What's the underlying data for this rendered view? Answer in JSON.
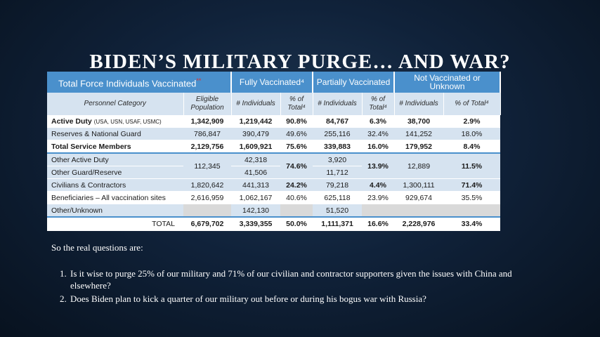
{
  "slide": {
    "title": "BIDEN’S MILITARY PURGE… AND WAR?"
  },
  "table": {
    "header": {
      "total_label": "Total Force Individuals Vaccinated",
      "total_marker": "**",
      "fully": "Fully Vaccinated⁴",
      "partially": "Partially Vaccinated",
      "not": "Not Vaccinated or Unknown"
    },
    "subheader": {
      "category": "Personnel Category",
      "eligible": "Eligible Population",
      "fully_num": "# Individuals",
      "fully_pct": "% of Total⁴",
      "partial_num": "# Individuals",
      "partial_pct": "% of Total⁴",
      "not_num": "# Individuals",
      "not_pct": "% of Total⁴"
    },
    "rows": [
      {
        "label": "Active Duty",
        "label_small": "(USA, USN, USAF, USMC)",
        "eligible": "1,342,909",
        "f_num": "1,219,442",
        "f_pct": "90.8%",
        "p_num": "84,767",
        "p_pct": "6.3%",
        "n_num": "38,700",
        "n_pct": "2.9%"
      },
      {
        "label": "Reserves & National Guard",
        "eligible": "786,847",
        "f_num": "390,479",
        "f_pct": "49.6%",
        "p_num": "255,116",
        "p_pct": "32.4%",
        "n_num": "141,252",
        "n_pct": "18.0%"
      },
      {
        "label": "Total Service Members",
        "eligible": "2,129,756",
        "f_num": "1,609,921",
        "f_pct": "75.6%",
        "p_num": "339,883",
        "p_pct": "16.0%",
        "n_num": "179,952",
        "n_pct": "8.4%"
      }
    ],
    "other_group": {
      "label_a": "Other Active Duty",
      "label_b": "Other Guard/Reserve",
      "eligible": "112,345",
      "f_num_a": "42,318",
      "f_num_b": "41,506",
      "f_pct": "74.6%",
      "p_num_a": "3,920",
      "p_num_b": "11,712",
      "p_pct": "13.9%",
      "n_num": "12,889",
      "n_pct": "11.5%"
    },
    "rows2": [
      {
        "label": "Civilians & Contractors",
        "eligible": "1,820,642",
        "f_num": "441,313",
        "f_pct": "24.2%",
        "p_num": "79,218",
        "p_pct": "4.4%",
        "n_num": "1,300,111",
        "n_pct": "71.4%"
      },
      {
        "label": "Beneficiaries – All vaccination sites",
        "eligible": "2,616,959",
        "f_num": "1,062,167",
        "f_pct": "40.6%",
        "p_num": "625,118",
        "p_pct": "23.9%",
        "n_num": "929,674",
        "n_pct": "35.5%"
      },
      {
        "label": "Other/Unknown",
        "eligible": "",
        "f_num": "142,130",
        "f_pct": "",
        "p_num": "51,520",
        "p_pct": "",
        "n_num": "",
        "n_pct": ""
      }
    ],
    "total": {
      "label": "TOTAL",
      "eligible": "6,679,702",
      "f_num": "3,339,355",
      "f_pct": "50.0%",
      "p_num": "1,111,371",
      "p_pct": "16.6%",
      "n_num": "2,228,976",
      "n_pct": "33.4%"
    }
  },
  "questions": {
    "intro": "So the real questions are:",
    "items": [
      "Is it wise to purge 25% of our military and 71% of our civilian and contractor supporters given the issues with China and elsewhere?",
      "Does Biden plan to kick a quarter of our military out before or during his bogus war with Russia?"
    ]
  }
}
